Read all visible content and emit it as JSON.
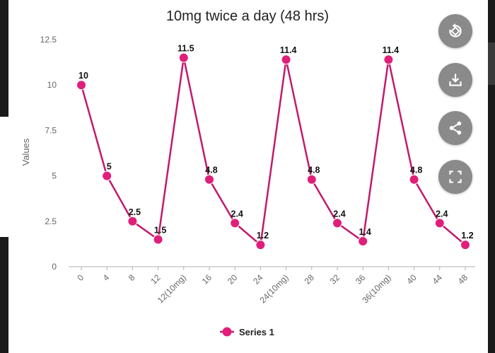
{
  "chart_data": {
    "type": "line",
    "title": "10mg twice a day (48 hrs)",
    "ylabel": "Values",
    "xlabel": "",
    "ylim": [
      0,
      12.5
    ],
    "yticks": [
      0,
      2.5,
      5,
      7.5,
      10,
      12.5
    ],
    "categories": [
      "0",
      "4",
      "8",
      "12",
      "12(10mg)",
      "16",
      "20",
      "24",
      "24(10mg)",
      "28",
      "32",
      "36",
      "36(10mg)",
      "40",
      "44",
      "48"
    ],
    "series": [
      {
        "name": "Series 1",
        "values": [
          10,
          5,
          2.5,
          1.5,
          11.5,
          4.8,
          2.4,
          1.2,
          11.4,
          4.8,
          2.4,
          1.4,
          11.4,
          4.8,
          2.4,
          1.2
        ],
        "labels": [
          "10",
          "5",
          "2.5",
          "1.5",
          "11.5",
          "4.8",
          "2.4",
          "1.2",
          "11.4",
          "4.8",
          "2.4",
          "1.4",
          "11.4",
          "4.8",
          "2.4",
          "1.2"
        ],
        "color": "#e01f7a",
        "line_color": "#c21a6b"
      }
    ],
    "legend": "bottom-center",
    "grid": false
  },
  "actions": {
    "rotate_icon": "rotate-icon",
    "download_icon": "download-icon",
    "share_icon": "share-icon",
    "fullscreen_icon": "fullscreen-icon"
  }
}
